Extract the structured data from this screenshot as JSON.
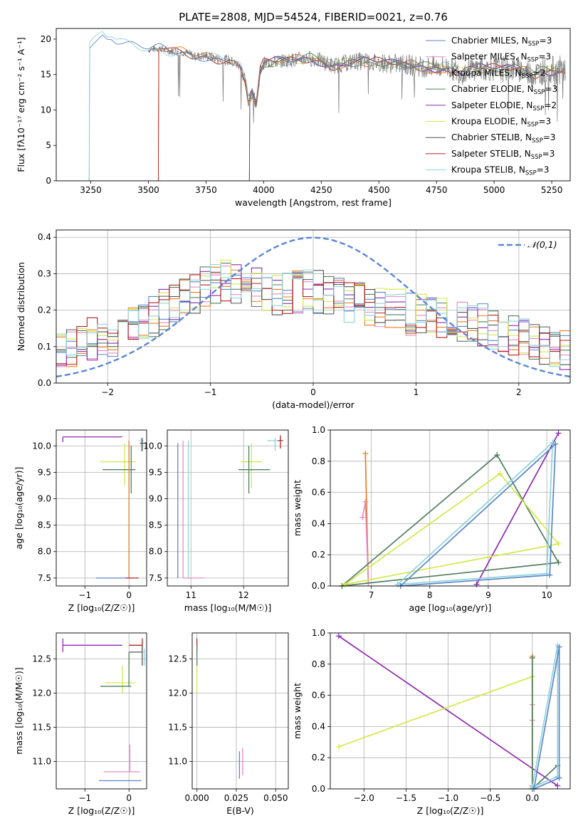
{
  "figure_title": "PLATE=2808, MJD=54524, FIBERID=0021, z=0.76",
  "colors": {
    "chabrier_miles": "#5b86c9",
    "salpeter_miles": "#e78ac3",
    "kroupa_miles": "#e67e22",
    "chabrier_elodie": "#4f7f5f",
    "salpeter_elodie": "#8e2bb0",
    "kroupa_elodie": "#d4e84a",
    "chabrier_stelib": "#555555",
    "salpeter_stelib": "#b22222",
    "kroupa_stelib": "#8fd3dc",
    "gaussian": "#5b86d6"
  },
  "chart_data": [
    {
      "id": "spectrum",
      "type": "line",
      "xlabel": "wavelength [Angstrom, rest frame]",
      "ylabel": "Flux [fλ10⁻¹⁷ erg cm⁻² s⁻¹ A⁻¹]",
      "xlim": [
        3100,
        5330
      ],
      "ylim": [
        0,
        21.5
      ],
      "xticks": [
        3250,
        3500,
        3750,
        4000,
        4250,
        4500,
        4750,
        5000,
        5250
      ],
      "yticks": [
        0,
        5,
        10,
        15,
        20
      ],
      "legend_position": "top-right",
      "legend": [
        {
          "label": "Chabrier MILES, N",
          "sub": "SSP",
          "suffix": "=3",
          "color_key": "chabrier_miles"
        },
        {
          "label": "Salpeter MILES, N",
          "sub": "SSP",
          "suffix": "=3",
          "color_key": "salpeter_miles"
        },
        {
          "label": "Kroupa MILES, N",
          "sub": "SSP",
          "suffix": "=2",
          "color_key": "kroupa_miles"
        },
        {
          "label": "Chabrier ELODIE, N",
          "sub": "SSP",
          "suffix": "=3",
          "color_key": "chabrier_elodie"
        },
        {
          "label": "Salpeter ELODIE, N",
          "sub": "SSP",
          "suffix": "=2",
          "color_key": "salpeter_elodie"
        },
        {
          "label": "Kroupa ELODIE, N",
          "sub": "SSP",
          "suffix": "=3",
          "color_key": "kroupa_elodie"
        },
        {
          "label": "Chabrier STELIB, N",
          "sub": "SSP",
          "suffix": "=3",
          "color_key": "chabrier_stelib"
        },
        {
          "label": "Salpeter STELIB, N",
          "sub": "SSP",
          "suffix": "=3",
          "color_key": "salpeter_stelib"
        },
        {
          "label": "Kroupa STELIB, N",
          "sub": "SSP",
          "suffix": "=3",
          "color_key": "kroupa_stelib"
        }
      ],
      "series_starts": [
        {
          "color_key": "chabrier_miles",
          "start": 3245
        },
        {
          "color_key": "kroupa_stelib",
          "start": 3245
        },
        {
          "color_key": "kroupa_miles",
          "start": 3545
        },
        {
          "color_key": "salpeter_stelib",
          "start": 3545
        },
        {
          "color_key": "kroupa_elodie",
          "start": 3940
        },
        {
          "color_key": "chabrier_elodie",
          "start": 3940
        },
        {
          "color_key": "salpeter_elodie",
          "start": 3940
        }
      ],
      "data_start": 3500,
      "data_end": 5310,
      "continuum": [
        [
          3245,
          19.4
        ],
        [
          3260,
          19.8
        ],
        [
          3280,
          20.1
        ],
        [
          3300,
          20.6
        ],
        [
          3320,
          20.1
        ],
        [
          3340,
          20.3
        ],
        [
          3360,
          19.8
        ],
        [
          3400,
          19.3
        ],
        [
          3450,
          18.9
        ],
        [
          3500,
          18.5
        ],
        [
          3550,
          18.7
        ],
        [
          3600,
          18.3
        ],
        [
          3650,
          18.2
        ],
        [
          3700,
          17.6
        ],
        [
          3750,
          17.6
        ],
        [
          3800,
          17.2
        ],
        [
          3850,
          17.0
        ],
        [
          3880,
          16.5
        ],
        [
          3900,
          16.0
        ],
        [
          3920,
          14.0
        ],
        [
          3934,
          11.2
        ],
        [
          3950,
          12.5
        ],
        [
          3968,
          10.8
        ],
        [
          3985,
          15.5
        ],
        [
          4000,
          16.6
        ],
        [
          4100,
          17.0
        ],
        [
          4200,
          17.3
        ],
        [
          4250,
          16.9
        ],
        [
          4300,
          16.2
        ],
        [
          4400,
          16.9
        ],
        [
          4500,
          16.7
        ],
        [
          4600,
          16.4
        ],
        [
          4700,
          16.1
        ],
        [
          4800,
          16.0
        ],
        [
          4860,
          15.2
        ],
        [
          4900,
          15.9
        ],
        [
          5000,
          15.8
        ],
        [
          5100,
          15.8
        ],
        [
          5175,
          15.0
        ],
        [
          5200,
          15.5
        ],
        [
          5310,
          15.7
        ]
      ]
    },
    {
      "id": "residuals",
      "type": "histogram",
      "xlabel": "(data-model)/error",
      "ylabel": "Normed distribution",
      "xlim": [
        -2.5,
        2.5
      ],
      "ylim": [
        0,
        0.42
      ],
      "xticks": [
        -2,
        -1,
        0,
        1,
        2
      ],
      "yticks": [
        0.0,
        0.1,
        0.2,
        0.3,
        0.4
      ],
      "legend_position": "top-right",
      "legend": "𝒩(0,1)",
      "bin_width": 0.1,
      "bin_start": -2.5,
      "base_values": [
        0.09,
        0.1,
        0.11,
        0.12,
        0.12,
        0.13,
        0.14,
        0.16,
        0.17,
        0.18,
        0.2,
        0.21,
        0.23,
        0.25,
        0.26,
        0.27,
        0.28,
        0.27,
        0.26,
        0.26,
        0.25,
        0.24,
        0.25,
        0.25,
        0.26,
        0.25,
        0.24,
        0.23,
        0.22,
        0.22,
        0.21,
        0.21,
        0.2,
        0.2,
        0.19,
        0.19,
        0.18,
        0.18,
        0.17,
        0.17,
        0.16,
        0.16,
        0.15,
        0.14,
        0.13,
        0.12,
        0.12,
        0.11,
        0.1,
        0.09
      ]
    },
    {
      "id": "age_vs_Z",
      "type": "scatter",
      "xlabel": "Z [log₁₀(Z/Z☉)]",
      "ylabel": "age  [log₁₀(age/yr)]",
      "xlim": [
        -1.65,
        0.4
      ],
      "ylim": [
        7.35,
        10.3
      ],
      "xticks": [
        -1,
        0
      ],
      "yticks": [
        7.5,
        8.0,
        8.5,
        9.0,
        9.5,
        10.0
      ],
      "points": [
        {
          "color_key": "salpeter_elodie",
          "x": -1.5,
          "y": 10.17,
          "xerr": [
            0,
            1.35
          ],
          "yerr": [
            0.1,
            0
          ]
        },
        {
          "color_key": "kroupa_elodie",
          "x": -0.1,
          "y": 9.7,
          "xerr": [
            0.55,
            0.25
          ],
          "yerr": [
            0.45,
            0.35
          ]
        },
        {
          "color_key": "chabrier_elodie",
          "x": 0.05,
          "y": 9.55,
          "xerr": [
            0.65,
            0.1
          ],
          "yerr": [
            0.45,
            0.45
          ]
        },
        {
          "color_key": "kroupa_miles",
          "x": 0.0,
          "y": 7.5,
          "xerr": [
            0,
            0
          ],
          "yerr": [
            0,
            2.6
          ]
        },
        {
          "color_key": "chabrier_miles",
          "x": -0.1,
          "y": 7.5,
          "xerr": [
            0.65,
            0.15
          ],
          "yerr": [
            0,
            0
          ]
        },
        {
          "color_key": "salpeter_stelib",
          "x": 0.02,
          "y": 7.5,
          "xerr": [
            0.1,
            0.2
          ],
          "yerr": [
            0,
            0
          ]
        },
        {
          "color_key": "kroupa_stelib",
          "x": 0.28,
          "y": 10.1,
          "xerr": [
            0.05,
            0.05
          ],
          "yerr": [
            0.2,
            0.05
          ]
        },
        {
          "color_key": "chabrier_stelib",
          "x": 0.3,
          "y": 10.05,
          "xerr": [
            0.05,
            0.05
          ],
          "yerr": [
            0.15,
            0.1
          ]
        }
      ]
    },
    {
      "id": "age_vs_mass",
      "type": "scatter",
      "xlabel": "mass [log₁₀(M/M☉)]",
      "ylabel": "",
      "xlim": [
        10.55,
        12.85
      ],
      "ylim": [
        7.35,
        10.3
      ],
      "xticks": [
        11,
        12
      ],
      "yticks": [
        7.5,
        8.0,
        8.5,
        9.0,
        9.5,
        10.0
      ],
      "points": [
        {
          "color_key": "salpeter_stelib",
          "x": 12.7,
          "y": 10.1,
          "xerr": [
            0.05,
            0.05
          ],
          "yerr": [
            0.15,
            0.1
          ]
        },
        {
          "color_key": "kroupa_stelib",
          "x": 12.6,
          "y": 10.1,
          "xerr": [
            0.15,
            0.05
          ],
          "yerr": [
            0.2,
            0.05
          ]
        },
        {
          "color_key": "kroupa_elodie",
          "x": 12.15,
          "y": 9.7,
          "xerr": [
            0.2,
            0.2
          ],
          "yerr": [
            0.5,
            0.35
          ]
        },
        {
          "color_key": "chabrier_elodie",
          "x": 12.1,
          "y": 9.55,
          "xerr": [
            0.2,
            0.4
          ],
          "yerr": [
            0.45,
            0.45
          ]
        },
        {
          "color_key": "chabrier_miles",
          "x": 10.75,
          "y": 7.5,
          "xerr": [
            0,
            0
          ],
          "yerr": [
            0,
            2.55
          ]
        },
        {
          "color_key": "salpeter_miles",
          "x": 10.85,
          "y": 7.5,
          "xerr": [
            0,
            0.4
          ],
          "yerr": [
            0,
            2.6
          ]
        },
        {
          "color_key": "kroupa_stelib",
          "x": 10.95,
          "y": 7.5,
          "xerr": [
            0,
            0
          ],
          "yerr": [
            0,
            2.6
          ]
        }
      ]
    },
    {
      "id": "massweight_vs_age",
      "type": "line",
      "xlabel": "age  [log₁₀(age/yr)]",
      "ylabel": "mass weight",
      "xlim": [
        6.3,
        10.4
      ],
      "ylim": [
        0,
        1
      ],
      "xticks": [
        7,
        8,
        9,
        10
      ],
      "yticks": [
        0.0,
        0.2,
        0.4,
        0.6,
        0.8,
        1.0
      ],
      "series": [
        {
          "color_key": "kroupa_miles",
          "x": [
            6.9,
            6.95
          ],
          "y": [
            0.85,
            0.02
          ]
        },
        {
          "color_key": "salpeter_miles",
          "x": [
            6.85,
            6.9,
            6.95
          ],
          "y": [
            0.44,
            0.54,
            0.02
          ]
        },
        {
          "color_key": "salpeter_elodie",
          "x": [
            8.8,
            10.2
          ],
          "y": [
            0.01,
            0.98
          ]
        },
        {
          "color_key": "chabrier_elodie",
          "x": [
            6.5,
            9.15,
            10.2,
            6.5
          ],
          "y": [
            0.0,
            0.84,
            0.15,
            0.0
          ]
        },
        {
          "color_key": "kroupa_elodie",
          "x": [
            6.55,
            9.2,
            10.2,
            6.55
          ],
          "y": [
            0.01,
            0.72,
            0.27,
            0.01
          ]
        },
        {
          "color_key": "kroupa_stelib",
          "x": [
            7.45,
            10.0,
            10.1,
            7.45
          ],
          "y": [
            0.01,
            0.08,
            0.92,
            0.01
          ]
        },
        {
          "color_key": "chabrier_miles",
          "x": [
            7.5,
            10.05,
            10.15,
            7.5
          ],
          "y": [
            0.0,
            0.07,
            0.91,
            0.0
          ]
        }
      ]
    },
    {
      "id": "mass_vs_Z",
      "type": "scatter",
      "xlabel": "Z [log₁₀(Z/Z☉)]",
      "ylabel": "mass [log₁₀(M/M☉)]",
      "xlim": [
        -1.65,
        0.4
      ],
      "ylim": [
        10.6,
        12.88
      ],
      "xticks": [
        -1,
        0
      ],
      "yticks": [
        11.0,
        11.5,
        12.0,
        12.5
      ],
      "points": [
        {
          "color_key": "salpeter_elodie",
          "x": -1.5,
          "y": 12.7,
          "xerr": [
            0,
            1.35
          ],
          "yerr": [
            0.1,
            0.1
          ]
        },
        {
          "color_key": "salpeter_stelib",
          "x": 0.3,
          "y": 12.7,
          "xerr": [
            0.3,
            0
          ],
          "yerr": [
            0.1,
            0.1
          ]
        },
        {
          "color_key": "chabrier_stelib",
          "x": 0.3,
          "y": 12.6,
          "xerr": [
            0.3,
            0
          ],
          "yerr": [
            0.2,
            0.1
          ]
        },
        {
          "color_key": "kroupa_stelib",
          "x": 0.35,
          "y": 12.6,
          "xerr": [
            0.05,
            0
          ],
          "yerr": [
            0.2,
            0.05
          ]
        },
        {
          "color_key": "kroupa_elodie",
          "x": -0.15,
          "y": 12.15,
          "xerr": [
            0.4,
            0.3
          ],
          "yerr": [
            0.15,
            0.25
          ]
        },
        {
          "color_key": "chabrier_elodie",
          "x": 0.0,
          "y": 12.1,
          "xerr": [
            0.65,
            0.05
          ],
          "yerr": [
            0.0,
            0.5
          ]
        },
        {
          "color_key": "salpeter_miles",
          "x": 0.02,
          "y": 10.85,
          "xerr": [
            0.6,
            0.23
          ],
          "yerr": [
            0,
            0.4
          ]
        },
        {
          "color_key": "chabrier_miles",
          "x": 0.02,
          "y": 10.72,
          "xerr": [
            0.7,
            0.26
          ],
          "yerr": [
            0,
            0
          ]
        }
      ]
    },
    {
      "id": "mass_vs_ebv",
      "type": "scatter",
      "xlabel": "E(B-V)",
      "ylabel": "",
      "xlim": [
        -0.003,
        0.058
      ],
      "ylim": [
        10.6,
        12.88
      ],
      "xticks": [
        0.0,
        0.025,
        0.05
      ],
      "xtick_labels": [
        "0.000",
        "0.025",
        "0.050"
      ],
      "yticks": [
        11.0,
        11.5,
        12.0,
        12.5
      ],
      "points": [
        {
          "color_key": "salpeter_stelib",
          "x": 0.0,
          "y": 12.7,
          "xerr": [
            0,
            0
          ],
          "yerr": [
            0.1,
            0.1
          ]
        },
        {
          "color_key": "chabrier_elodie",
          "x": 0.0,
          "y": 12.55,
          "xerr": [
            0,
            0
          ],
          "yerr": [
            0.15,
            0.15
          ]
        },
        {
          "color_key": "kroupa_elodie",
          "x": 0.0,
          "y": 12.2,
          "xerr": [
            0,
            0
          ],
          "yerr": [
            0.2,
            0.2
          ]
        },
        {
          "color_key": "chabrier_miles",
          "x": 0.027,
          "y": 10.95,
          "xerr": [
            0,
            0
          ],
          "yerr": [
            0.2,
            0.2
          ]
        },
        {
          "color_key": "salpeter_miles",
          "x": 0.029,
          "y": 11.0,
          "xerr": [
            0,
            0
          ],
          "yerr": [
            0.2,
            0.2
          ]
        }
      ]
    },
    {
      "id": "massweight_vs_Z",
      "type": "line",
      "xlabel": "Z [log₁₀(Z/Z☉)]",
      "ylabel": "mass weight",
      "xlim": [
        -2.4,
        0.45
      ],
      "ylim": [
        0,
        1
      ],
      "xticks": [
        -2.0,
        -1.5,
        -1.0,
        -0.5,
        0.0
      ],
      "xtick_labels": [
        "−2.0",
        "−1.5",
        "−1.0",
        "−0.5",
        "0.0"
      ],
      "yticks": [
        0.0,
        0.2,
        0.4,
        0.6,
        0.8,
        1.0
      ],
      "series": [
        {
          "color_key": "salpeter_elodie",
          "x": [
            -2.3,
            0.3
          ],
          "y": [
            0.98,
            0.02
          ]
        },
        {
          "color_key": "kroupa_elodie",
          "x": [
            -2.3,
            0.0,
            0.0
          ],
          "y": [
            0.27,
            0.72,
            0.01
          ]
        },
        {
          "color_key": "kroupa_miles",
          "x": [
            0.0,
            0.0
          ],
          "y": [
            0.85,
            0.02
          ]
        },
        {
          "color_key": "salpeter_miles",
          "x": [
            0.0,
            0.0,
            0.0
          ],
          "y": [
            0.54,
            0.44,
            0.02
          ]
        },
        {
          "color_key": "chabrier_elodie",
          "x": [
            0.0,
            0.3,
            0.0,
            0.0
          ],
          "y": [
            0.0,
            0.15,
            0.0,
            0.84
          ]
        },
        {
          "color_key": "kroupa_stelib",
          "x": [
            0.0,
            0.3,
            0.3,
            0.0
          ],
          "y": [
            0.01,
            0.92,
            0.08,
            0.01
          ]
        },
        {
          "color_key": "chabrier_miles",
          "x": [
            0.02,
            0.32,
            0.32,
            0.02
          ],
          "y": [
            0.0,
            0.91,
            0.07,
            0.0
          ]
        }
      ]
    }
  ]
}
